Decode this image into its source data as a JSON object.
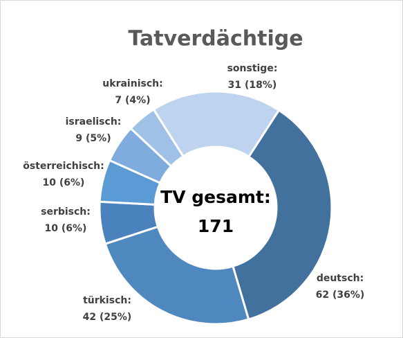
{
  "chart_data": {
    "type": "donut",
    "title": "Tatverdächtige",
    "categories": [
      "deutsch:",
      "türkisch:",
      "serbisch:",
      "österreichisch:",
      "israelisch:",
      "ukrainisch:",
      "sonstige:"
    ],
    "values": [
      62,
      42,
      10,
      10,
      9,
      7,
      31
    ],
    "value_labels": [
      "62 (36%)",
      "42 (25%)",
      "10 (6%)",
      "10 (6%)",
      "9 (5%)",
      "7 (4%)",
      "31 (18%)"
    ],
    "colors": [
      "#41719c",
      "#4f87bf",
      "#4a82bd",
      "#5b9bd5",
      "#7eacdd",
      "#9fc1e6",
      "#bdd3ee"
    ],
    "center_label": "TV gesamt:",
    "center_value": 171
  }
}
